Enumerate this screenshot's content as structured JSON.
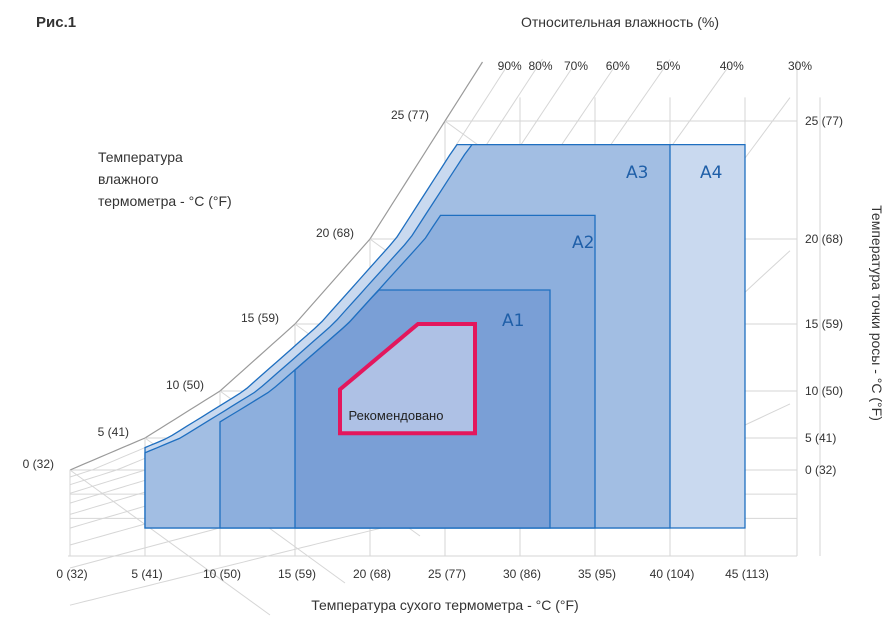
{
  "figure_label": "Рис.1",
  "chart_data": {
    "type": "psychrometric",
    "xlabel": "Температура сухого термометра - °C (°F)",
    "ylabel_right": "Температура точки росы - °C (°F)",
    "rh_title": "Относительная влажность (%)",
    "wetbulb_title": [
      "Температура",
      "влажного",
      "термометра - °C (°F)"
    ],
    "x_ticks": [
      {
        "value": 0,
        "label": "0 (32)"
      },
      {
        "value": 5,
        "label": "5 (41)"
      },
      {
        "value": 10,
        "label": "10 (50)"
      },
      {
        "value": 15,
        "label": "15 (59)"
      },
      {
        "value": 20,
        "label": "20 (68)"
      },
      {
        "value": 25,
        "label": "25 (77)"
      },
      {
        "value": 30,
        "label": "30 (86)"
      },
      {
        "value": 35,
        "label": "35 (95)"
      },
      {
        "value": 40,
        "label": "40 (104)"
      },
      {
        "value": 45,
        "label": "45 (113)"
      }
    ],
    "dewpoint_ticks": [
      {
        "value": 0,
        "label": "0 (32)"
      },
      {
        "value": 5,
        "label": "5 (41)"
      },
      {
        "value": 10,
        "label": "10 (50)"
      },
      {
        "value": 15,
        "label": "15 (59)"
      },
      {
        "value": 20,
        "label": "20 (68)"
      },
      {
        "value": 25,
        "label": "25 (77)"
      }
    ],
    "wetbulb_ticks": [
      {
        "value": 0,
        "label": "0 (32)"
      },
      {
        "value": 5,
        "label": "5 (41)"
      },
      {
        "value": 10,
        "label": "10 (50)"
      },
      {
        "value": 15,
        "label": "15 (59)"
      },
      {
        "value": 20,
        "label": "20 (68)"
      },
      {
        "value": 25,
        "label": "25 (77)"
      }
    ],
    "rh_ticks": [
      {
        "value": 90,
        "label": "90%"
      },
      {
        "value": 80,
        "label": "80%"
      },
      {
        "value": 70,
        "label": "70%"
      },
      {
        "value": 60,
        "label": "60%"
      },
      {
        "value": 50,
        "label": "50%"
      },
      {
        "value": 40,
        "label": "40%"
      },
      {
        "value": 30,
        "label": "30%"
      }
    ],
    "zones": [
      {
        "name": "A4",
        "dry_bulb_range": [
          5,
          45
        ],
        "dewpoint_range": [
          -12,
          24
        ],
        "rh_max": 90
      },
      {
        "name": "A3",
        "dry_bulb_range": [
          5,
          40
        ],
        "dewpoint_range": [
          -12,
          24
        ],
        "rh_max": 85
      },
      {
        "name": "A2",
        "dry_bulb_range": [
          10,
          35
        ],
        "dewpoint_range": [
          -12,
          21
        ],
        "rh_max": 80
      },
      {
        "name": "A1",
        "dry_bulb_range": [
          15,
          32
        ],
        "dewpoint_range": [
          -12,
          17
        ],
        "rh_max": 80
      },
      {
        "name": "Рекомендовано",
        "dry_bulb_range": [
          18,
          27
        ],
        "dewpoint_range": [
          5.5,
          15
        ],
        "rh_max": 60
      }
    ],
    "grid": true
  }
}
